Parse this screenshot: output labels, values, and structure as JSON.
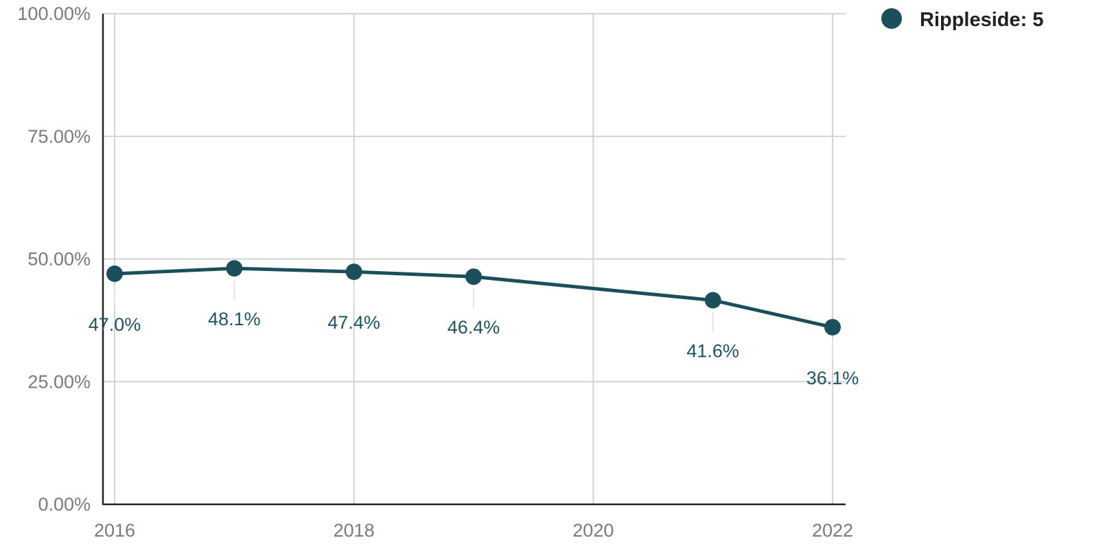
{
  "chart_data": {
    "type": "line",
    "title": "",
    "xlabel": "",
    "ylabel": "",
    "xlim": [
      2016,
      2022
    ],
    "ylim": [
      0,
      100
    ],
    "x_ticks": [
      {
        "value": 2016,
        "label": "2016"
      },
      {
        "value": 2018,
        "label": "2018"
      },
      {
        "value": 2020,
        "label": "2020"
      },
      {
        "value": 2022,
        "label": "2022"
      }
    ],
    "x_grid_values": [
      2016,
      2018,
      2020,
      2022
    ],
    "y_ticks": [
      {
        "value": 0,
        "label": "0.00%"
      },
      {
        "value": 25,
        "label": "25.00%"
      },
      {
        "value": 50,
        "label": "50.00%"
      },
      {
        "value": 75,
        "label": "75.00%"
      },
      {
        "value": 100,
        "label": "100.00%"
      }
    ],
    "grid": true,
    "legend_position": "top-right",
    "series": [
      {
        "name": "Rippleside: 5",
        "color": "#1b4f5c",
        "points": [
          {
            "x": 2016,
            "y": 47.0,
            "label": "47.0%"
          },
          {
            "x": 2017,
            "y": 48.1,
            "label": "48.1%"
          },
          {
            "x": 2018,
            "y": 47.4,
            "label": "47.4%"
          },
          {
            "x": 2019,
            "y": 46.4,
            "label": "46.4%"
          },
          {
            "x": 2021,
            "y": 41.6,
            "label": "41.6%"
          },
          {
            "x": 2022,
            "y": 36.1,
            "label": "36.1%"
          }
        ]
      }
    ]
  }
}
